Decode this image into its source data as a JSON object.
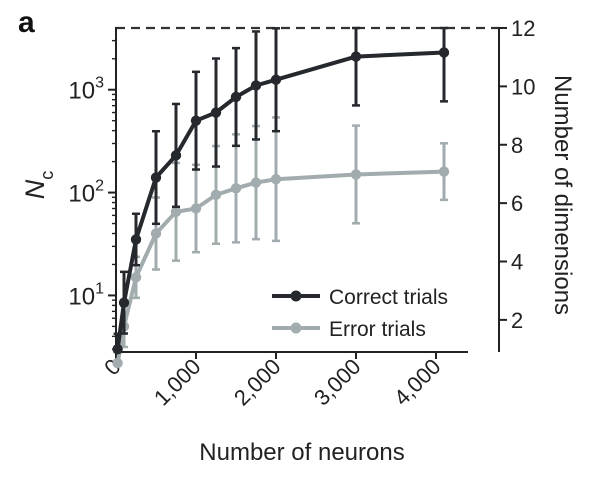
{
  "panel_label": "a",
  "chart_data": {
    "type": "line",
    "xlabel": "Number of neurons",
    "ylabel_left_base": "N",
    "ylabel_left_sub": "c",
    "ylabel_right": "Number of dimensions",
    "x_ticks": [
      0,
      1000,
      2000,
      3000,
      4000
    ],
    "x_tick_labels": [
      "0",
      "1,000",
      "2,000",
      "3,000",
      "4,000"
    ],
    "xlim": [
      0,
      4400
    ],
    "y_left_scale": "log",
    "y_left_ticks": [
      10,
      100,
      1000
    ],
    "y_left_tick_labels_base": [
      "10",
      "10",
      "10"
    ],
    "y_left_tick_labels_exp": [
      "1",
      "2",
      "3"
    ],
    "y_right_ticks": [
      2,
      4,
      6,
      8,
      10,
      12
    ],
    "y_right_tick_labels": [
      "2",
      "4",
      "6",
      "8",
      "10",
      "12"
    ],
    "y_right_lim": [
      0.9,
      12
    ],
    "dashed_line_at_right_value": 12,
    "legend_position": "bottom-right",
    "series": [
      {
        "name": "Correct trials",
        "color": "#25282d",
        "x": [
          20,
          100,
          250,
          500,
          750,
          1000,
          1250,
          1500,
          1750,
          2000,
          3000,
          4100
        ],
        "y": [
          3,
          8.5,
          35,
          140,
          230,
          500,
          600,
          850,
          1100,
          1250,
          2100,
          2300
        ],
        "err": [
          0.3,
          0.6,
          0.5,
          0.9,
          1.0,
          0.95,
          1.05,
          0.95,
          1.05,
          1.0,
          0.95,
          0.95
        ]
      },
      {
        "name": "Error trials",
        "color": "#a2acae",
        "x": [
          20,
          100,
          250,
          500,
          750,
          1000,
          1250,
          1500,
          1750,
          2000,
          3000,
          4100
        ],
        "y": [
          2.2,
          5,
          15,
          40,
          65,
          70,
          95,
          110,
          125,
          135,
          150,
          160
        ],
        "err": [
          0.25,
          0.4,
          0.4,
          0.7,
          0.95,
          0.85,
          0.95,
          1.05,
          1.1,
          1.2,
          0.95,
          0.55
        ]
      }
    ]
  }
}
